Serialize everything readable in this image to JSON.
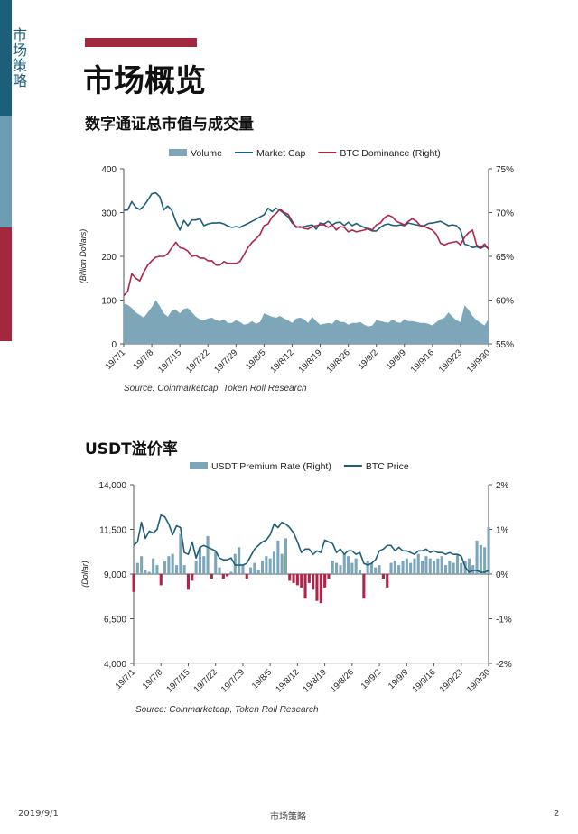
{
  "sidebar": {
    "label": "市场策略"
  },
  "page_title": "市场概览",
  "colors": {
    "navy": "#1d5f78",
    "teal": "#7da7b8",
    "crimson": "#b0244a"
  },
  "charts": [
    {
      "section_title": "数字通证总市值与成交量",
      "source": "Source: Coinmarketcap, Token Roll Research",
      "ylabel": "(Billion Dollars)",
      "left_ticks": [
        "400",
        "300",
        "200",
        "100",
        "0"
      ],
      "right_ticks": [
        "75%",
        "70%",
        "65%",
        "60%",
        "55%"
      ],
      "x_ticks": [
        "19/7/1",
        "19/7/8",
        "19/7/15",
        "19/7/22",
        "19/7/29",
        "19/8/5",
        "19/8/12",
        "19/8/19",
        "19/8/26",
        "19/9/2",
        "19/9/9",
        "19/9/16",
        "19/9/23",
        "19/9/30"
      ],
      "legend": [
        "Volume",
        "Market Cap",
        "BTC Dominance (Right)"
      ]
    },
    {
      "section_title": "USDT溢价率",
      "source": "Source: Coinmarketcap, Token Roll Research",
      "ylabel": "(Dollar)",
      "left_ticks": [
        "14,000",
        "11,500",
        "9,000",
        "6,500",
        "4,000"
      ],
      "right_ticks": [
        "2%",
        "1%",
        "0%",
        "-1%",
        "-2%"
      ],
      "x_ticks": [
        "19/7/1",
        "19/7/8",
        "19/7/15",
        "19/7/22",
        "19/7/29",
        "19/8/5",
        "19/8/12",
        "19/8/19",
        "19/8/26",
        "19/9/2",
        "19/9/9",
        "19/9/16",
        "19/9/23",
        "19/9/30"
      ],
      "legend": [
        "USDT Premium Rate (Right)",
        "BTC Price"
      ]
    }
  ],
  "chart_data": [
    {
      "type": "line",
      "x": [
        "19/7/1",
        "19/7/2",
        "19/7/3",
        "19/7/4",
        "19/7/5",
        "19/7/6",
        "19/7/7",
        "19/7/8",
        "19/7/9",
        "19/7/10",
        "19/7/11",
        "19/7/12",
        "19/7/13",
        "19/7/14",
        "19/7/15",
        "19/7/16",
        "19/7/17",
        "19/7/18",
        "19/7/19",
        "19/7/20",
        "19/7/21",
        "19/7/22",
        "19/7/23",
        "19/7/24",
        "19/7/25",
        "19/7/26",
        "19/7/27",
        "19/7/28",
        "19/7/29",
        "19/7/30",
        "19/7/31",
        "19/8/1",
        "19/8/2",
        "19/8/3",
        "19/8/4",
        "19/8/5",
        "19/8/6",
        "19/8/7",
        "19/8/8",
        "19/8/9",
        "19/8/10",
        "19/8/11",
        "19/8/12",
        "19/8/13",
        "19/8/14",
        "19/8/15",
        "19/8/16",
        "19/8/17",
        "19/8/18",
        "19/8/19",
        "19/8/20",
        "19/8/21",
        "19/8/22",
        "19/8/23",
        "19/8/24",
        "19/8/25",
        "19/8/26",
        "19/8/27",
        "19/8/28",
        "19/8/29",
        "19/8/30",
        "19/8/31",
        "19/9/1",
        "19/9/2",
        "19/9/3",
        "19/9/4",
        "19/9/5",
        "19/9/6",
        "19/9/7",
        "19/9/8",
        "19/9/9",
        "19/9/10",
        "19/9/11",
        "19/9/12",
        "19/9/13",
        "19/9/14",
        "19/9/15",
        "19/9/16",
        "19/9/17",
        "19/9/18",
        "19/9/19",
        "19/9/20",
        "19/9/21",
        "19/9/22",
        "19/9/23",
        "19/9/24",
        "19/9/25",
        "19/9/26",
        "19/9/27",
        "19/9/28",
        "19/9/29",
        "19/9/30"
      ],
      "series": [
        {
          "name": "Volume",
          "axis": "left",
          "kind": "area",
          "values": [
            92,
            89,
            82,
            72,
            66,
            60,
            72,
            84,
            100,
            86,
            70,
            62,
            76,
            78,
            70,
            80,
            82,
            72,
            62,
            56,
            54,
            58,
            60,
            54,
            52,
            56,
            48,
            48,
            54,
            50,
            44,
            46,
            52,
            46,
            50,
            70,
            66,
            62,
            60,
            64,
            58,
            54,
            48,
            58,
            60,
            56,
            48,
            62,
            52,
            44,
            46,
            48,
            46,
            56,
            50,
            50,
            44,
            48,
            48,
            50,
            44,
            40,
            42,
            54,
            52,
            50,
            48,
            56,
            50,
            48,
            56,
            52,
            52,
            50,
            48,
            48,
            46,
            42,
            50,
            56,
            60,
            72,
            62,
            54,
            50,
            88,
            78,
            64,
            54,
            48,
            42,
            58
          ]
        },
        {
          "name": "Market Cap",
          "axis": "left",
          "kind": "line",
          "values": [
            305,
            306,
            325,
            312,
            307,
            315,
            328,
            343,
            345,
            336,
            306,
            315,
            305,
            280,
            260,
            282,
            270,
            283,
            283,
            286,
            270,
            274,
            276,
            276,
            277,
            274,
            269,
            266,
            268,
            266,
            271,
            275,
            280,
            285,
            290,
            295,
            310,
            302,
            310,
            305,
            298,
            290,
            276,
            268,
            266,
            268,
            270,
            272,
            262,
            276,
            274,
            280,
            272,
            277,
            278,
            270,
            278,
            270,
            275,
            270,
            266,
            262,
            258,
            258,
            266,
            272,
            274,
            271,
            270,
            272,
            270,
            276,
            274,
            272,
            270,
            270,
            275,
            276,
            278,
            280,
            275,
            270,
            272,
            270,
            260,
            228,
            225,
            220,
            222,
            218,
            223,
            218
          ]
        },
        {
          "name": "BTC Dominance (Right)",
          "axis": "right",
          "kind": "line",
          "values": [
            60.5,
            61.0,
            63.0,
            62.5,
            62.2,
            63.2,
            64.0,
            64.5,
            64.9,
            65.0,
            65.0,
            65.3,
            66.0,
            66.6,
            66.0,
            65.9,
            65.6,
            65.0,
            65.1,
            64.8,
            64.8,
            64.5,
            64.5,
            64.0,
            64.0,
            64.4,
            64.2,
            64.2,
            64.2,
            64.4,
            65.2,
            66.0,
            66.6,
            67.0,
            67.5,
            68.5,
            68.7,
            69.5,
            69.9,
            70.4,
            70.0,
            69.8,
            69.0,
            68.3,
            68.4,
            68.2,
            68.1,
            68.4,
            68.5,
            68.6,
            68.6,
            68.3,
            68.6,
            68.0,
            68.4,
            68.3,
            67.8,
            68.0,
            67.8,
            67.9,
            68.0,
            68.2,
            68.0,
            68.6,
            68.8,
            69.4,
            69.7,
            69.5,
            69.0,
            68.8,
            68.6,
            69.0,
            69.3,
            69.0,
            68.5,
            68.4,
            68.2,
            68.0,
            67.5,
            66.5,
            66.3,
            66.5,
            66.6,
            66.7,
            66.3,
            67.2,
            67.7,
            68.0,
            66.3,
            66.0,
            66.4,
            65.8
          ]
        }
      ],
      "ylim": [
        0,
        400
      ],
      "y2lim": [
        55,
        75
      ],
      "ylabel": "(Billion Dollars)",
      "legend_position": "top"
    },
    {
      "type": "bar",
      "x": [
        "19/7/1",
        "19/7/2",
        "19/7/3",
        "19/7/4",
        "19/7/5",
        "19/7/6",
        "19/7/7",
        "19/7/8",
        "19/7/9",
        "19/7/10",
        "19/7/11",
        "19/7/12",
        "19/7/13",
        "19/7/14",
        "19/7/15",
        "19/7/16",
        "19/7/17",
        "19/7/18",
        "19/7/19",
        "19/7/20",
        "19/7/21",
        "19/7/22",
        "19/7/23",
        "19/7/24",
        "19/7/25",
        "19/7/26",
        "19/7/27",
        "19/7/28",
        "19/7/29",
        "19/7/30",
        "19/7/31",
        "19/8/1",
        "19/8/2",
        "19/8/3",
        "19/8/4",
        "19/8/5",
        "19/8/6",
        "19/8/7",
        "19/8/8",
        "19/8/9",
        "19/8/10",
        "19/8/11",
        "19/8/12",
        "19/8/13",
        "19/8/14",
        "19/8/15",
        "19/8/16",
        "19/8/17",
        "19/8/18",
        "19/8/19",
        "19/8/20",
        "19/8/21",
        "19/8/22",
        "19/8/23",
        "19/8/24",
        "19/8/25",
        "19/8/26",
        "19/8/27",
        "19/8/28",
        "19/8/29",
        "19/8/30",
        "19/8/31",
        "19/9/1",
        "19/9/2",
        "19/9/3",
        "19/9/4",
        "19/9/5",
        "19/9/6",
        "19/9/7",
        "19/9/8",
        "19/9/9",
        "19/9/10",
        "19/9/11",
        "19/9/12",
        "19/9/13",
        "19/9/14",
        "19/9/15",
        "19/9/16",
        "19/9/17",
        "19/9/18",
        "19/9/19",
        "19/9/20",
        "19/9/21",
        "19/9/22",
        "19/9/23",
        "19/9/24",
        "19/9/25",
        "19/9/26",
        "19/9/27",
        "19/9/28",
        "19/9/29",
        "19/9/30"
      ],
      "series": [
        {
          "name": "USDT Premium Rate (Right)",
          "axis": "right",
          "kind": "bar",
          "values": [
            -0.4,
            0.25,
            0.4,
            0.1,
            0.05,
            0.35,
            0.2,
            -0.25,
            0.3,
            0.4,
            0.45,
            0.2,
            0.9,
            0.2,
            -0.35,
            -0.15,
            0.3,
            0.6,
            0.4,
            0.85,
            -0.1,
            0.5,
            0.15,
            -0.1,
            -0.05,
            0.05,
            0.45,
            0.6,
            0.2,
            -0.1,
            0.15,
            0.25,
            0.1,
            0.3,
            0.4,
            0.35,
            0.5,
            0.75,
            0.45,
            0.8,
            -0.15,
            -0.2,
            -0.25,
            -0.3,
            -0.55,
            -0.2,
            -0.35,
            -0.6,
            -0.65,
            -0.3,
            -0.1,
            0.3,
            0.25,
            0.2,
            0.45,
            0.4,
            0.25,
            0.35,
            0.1,
            -0.55,
            0.3,
            0.25,
            0.15,
            0.2,
            -0.1,
            -0.3,
            0.25,
            0.3,
            0.2,
            0.3,
            0.35,
            0.25,
            0.35,
            0.45,
            0.3,
            0.4,
            0.35,
            0.3,
            0.35,
            0.4,
            0.2,
            0.3,
            0.25,
            0.45,
            0.25,
            0.3,
            0.35,
            0.2,
            0.75,
            0.65,
            0.6,
            1.05
          ]
        },
        {
          "name": "BTC Price",
          "axis": "left",
          "kind": "line",
          "values": [
            10600,
            10800,
            11900,
            11000,
            11400,
            11300,
            11500,
            12300,
            12200,
            11800,
            11200,
            11700,
            11600,
            10200,
            10100,
            10800,
            9900,
            10500,
            10600,
            10500,
            10400,
            10300,
            9900,
            9800,
            9800,
            9900,
            9500,
            9500,
            9500,
            9600,
            10000,
            10400,
            10600,
            10800,
            10900,
            11200,
            11800,
            11600,
            11900,
            11800,
            11600,
            11300,
            10800,
            10200,
            10400,
            10400,
            10100,
            10300,
            10200,
            10900,
            10800,
            10700,
            10200,
            10400,
            10100,
            10300,
            10300,
            10100,
            10200,
            9600,
            9500,
            9600,
            9800,
            10300,
            10400,
            10600,
            10600,
            10300,
            10500,
            10300,
            10300,
            10200,
            10100,
            10300,
            10300,
            10400,
            10200,
            10300,
            10200,
            10200,
            10100,
            10200,
            10100,
            10100,
            10000,
            9400,
            9100,
            9200,
            9200,
            9100,
            9100,
            9200
          ]
        }
      ],
      "ylim": [
        4000,
        14000
      ],
      "y2lim": [
        -2,
        2
      ],
      "ylabel": "(Dollar)",
      "legend_position": "top"
    }
  ],
  "footer": {
    "date": "2019/9/1",
    "center": "市场策略",
    "page": "2"
  }
}
